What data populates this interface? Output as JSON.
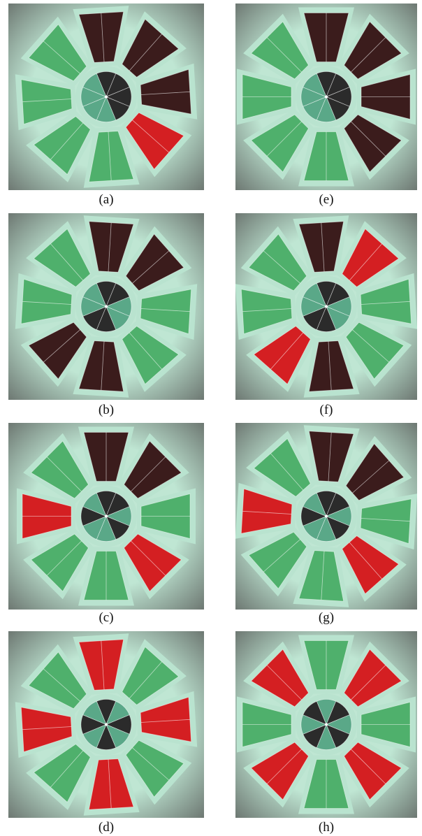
{
  "panels": [
    {
      "label": "(a)"
    },
    {
      "label": "(e)"
    },
    {
      "label": "(b)"
    },
    {
      "label": "(f)"
    },
    {
      "label": "(c)"
    },
    {
      "label": "(g)"
    },
    {
      "label": "(d)"
    },
    {
      "label": "(h)"
    }
  ]
}
